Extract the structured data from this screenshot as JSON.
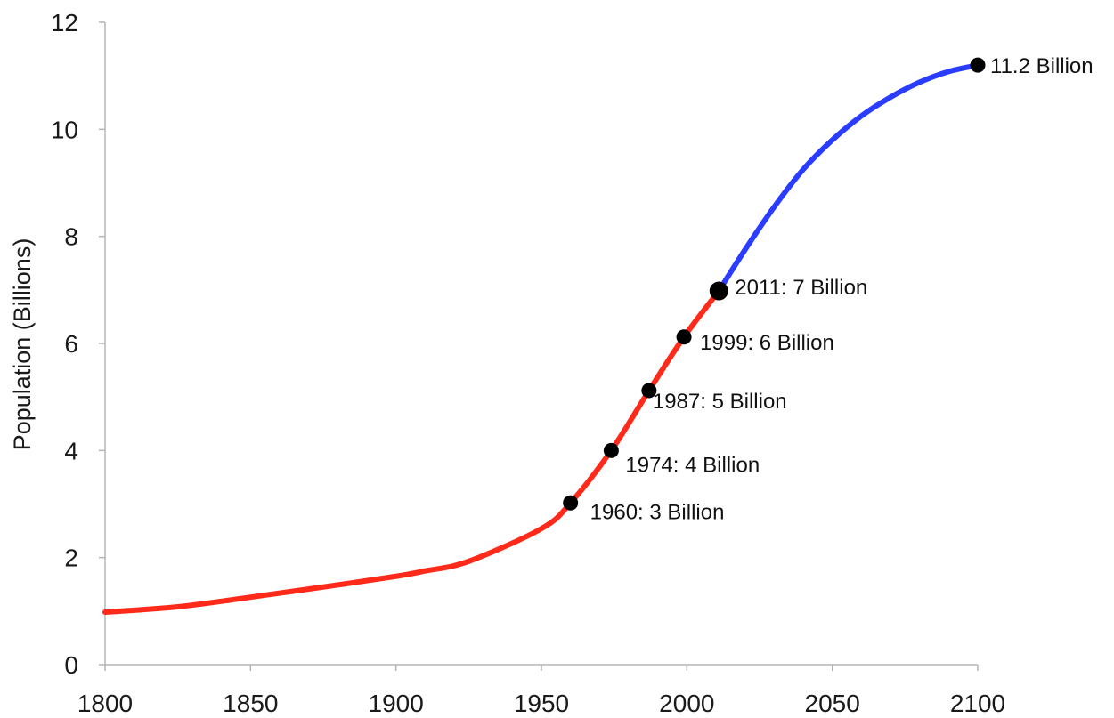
{
  "chart_data": {
    "type": "line",
    "title": "",
    "xlabel": "",
    "ylabel": "Population (Billions)",
    "xlim": [
      1800,
      2100
    ],
    "ylim": [
      0,
      12
    ],
    "x_ticks": [
      "1800",
      "1850",
      "1900",
      "1950",
      "2000",
      "2050",
      "2100"
    ],
    "y_ticks": [
      "0",
      "2",
      "4",
      "6",
      "8",
      "10",
      "12"
    ],
    "grid": false,
    "legend": "none",
    "series": [
      {
        "color": "#ff2a1a",
        "points": [
          [
            1800,
            0.98
          ],
          [
            1825,
            1.08
          ],
          [
            1850,
            1.26
          ],
          [
            1875,
            1.45
          ],
          [
            1900,
            1.65
          ],
          [
            1910,
            1.75
          ],
          [
            1925,
            1.93
          ],
          [
            1950,
            2.54
          ],
          [
            1960,
            3.02
          ],
          [
            1974,
            4.0
          ],
          [
            1987,
            5.12
          ],
          [
            1999,
            6.12
          ],
          [
            2011,
            6.98
          ]
        ]
      },
      {
        "color": "#2a3dff",
        "points": [
          [
            2011,
            6.98
          ],
          [
            2020,
            7.75
          ],
          [
            2030,
            8.55
          ],
          [
            2040,
            9.25
          ],
          [
            2050,
            9.8
          ],
          [
            2060,
            10.25
          ],
          [
            2070,
            10.6
          ],
          [
            2080,
            10.88
          ],
          [
            2090,
            11.08
          ],
          [
            2100,
            11.2
          ]
        ]
      }
    ],
    "points": [
      {
        "x": 1960,
        "y": 3.02,
        "label": "1960: 3 Billion"
      },
      {
        "x": 1974,
        "y": 4.0,
        "label": "1974: 4 Billion"
      },
      {
        "x": 1987,
        "y": 5.12,
        "label": "1987: 5 Billion"
      },
      {
        "x": 1999,
        "y": 6.12,
        "label": "1999: 6 Billion"
      },
      {
        "x": 2011,
        "y": 6.98,
        "label": "2011: 7 Billion"
      },
      {
        "x": 2100,
        "y": 11.2,
        "label": "11.2 Billion"
      }
    ]
  }
}
